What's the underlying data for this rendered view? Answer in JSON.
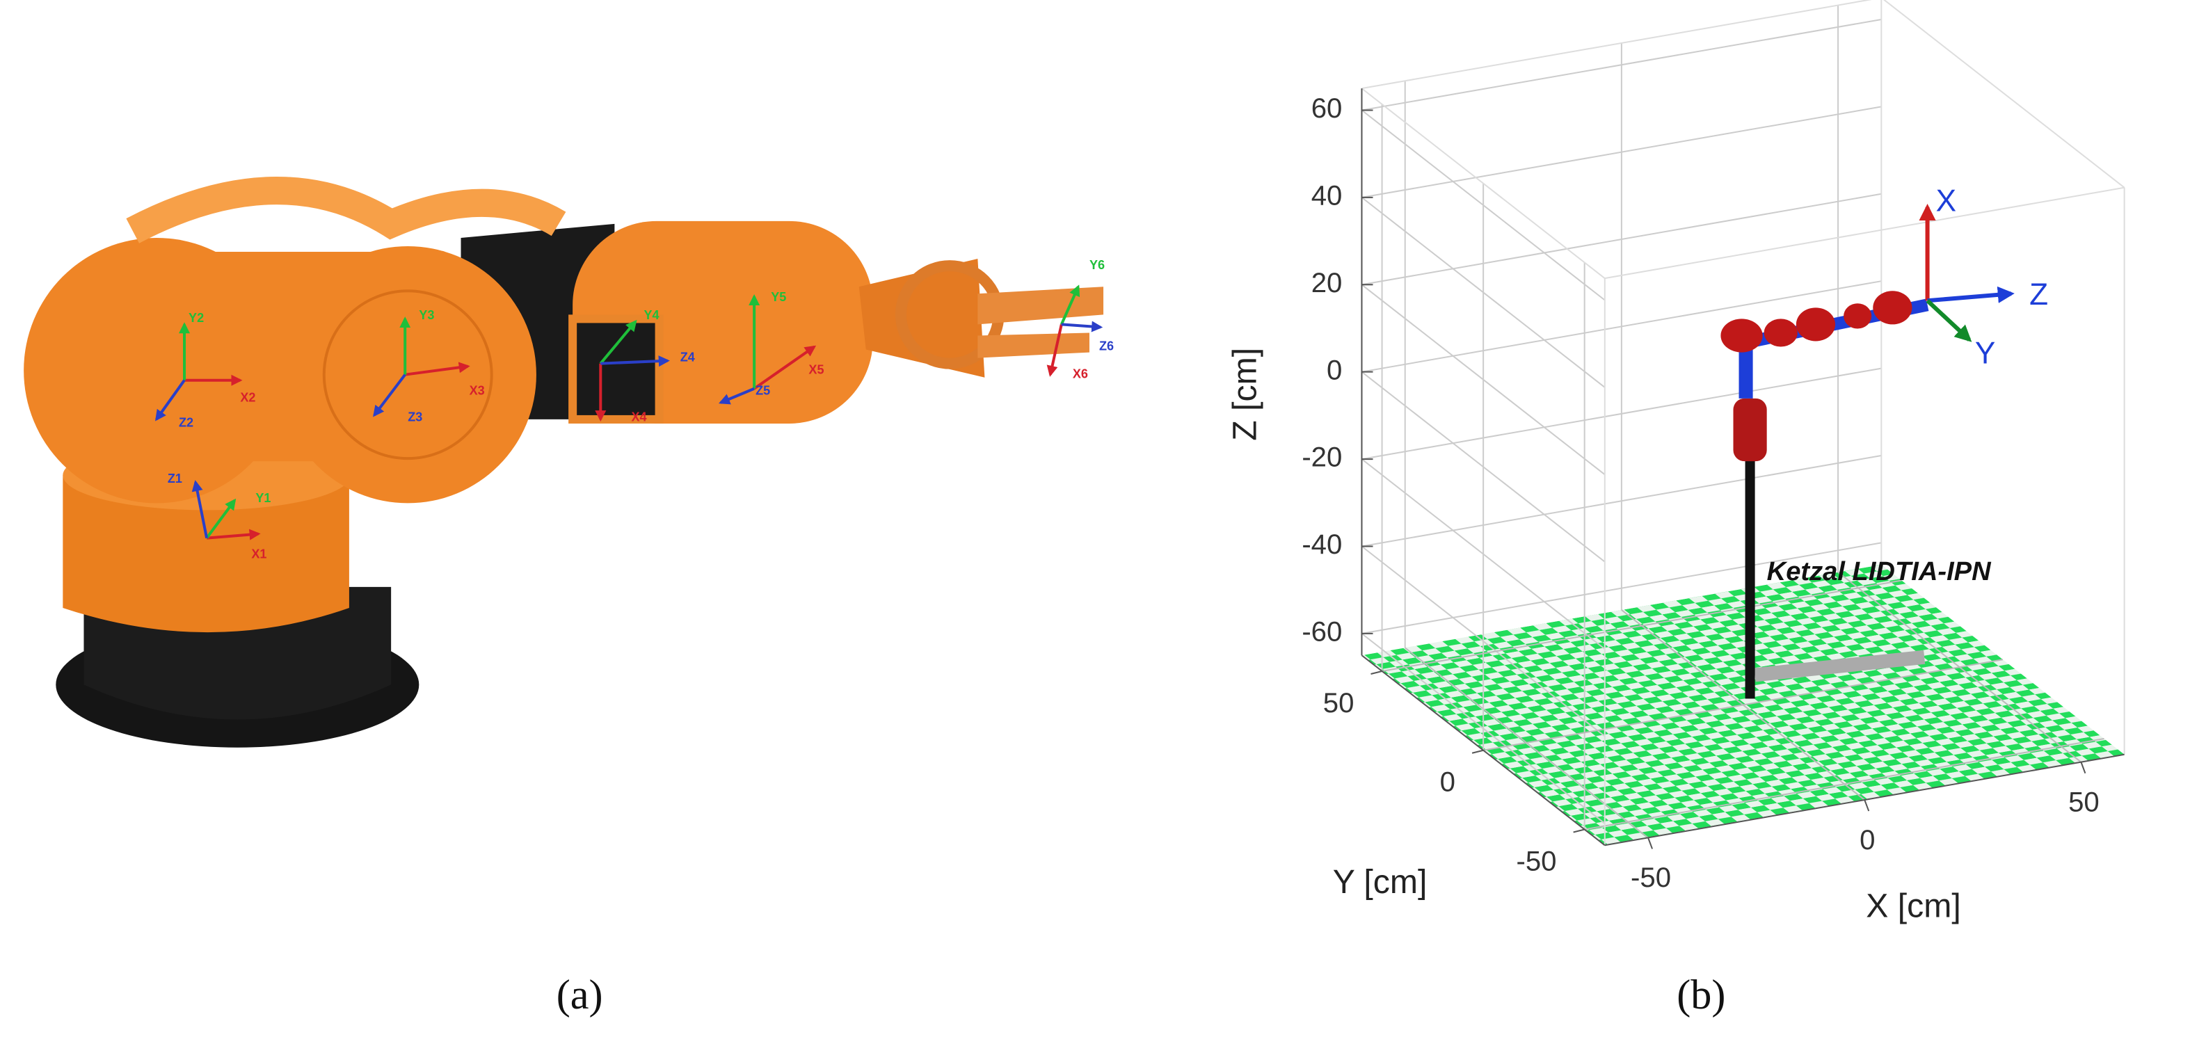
{
  "panel_a": {
    "caption": "(a)",
    "frames": [
      {
        "x": "X1",
        "y": "Y1",
        "z": "Z1"
      },
      {
        "x": "X2",
        "y": "Y2",
        "z": "Z2"
      },
      {
        "x": "X3",
        "y": "Y3",
        "z": "Z3"
      },
      {
        "x": "X4",
        "y": "Y4",
        "z": "Z4"
      },
      {
        "x": "X5",
        "y": "Y5",
        "z": "Z5"
      },
      {
        "x": "X6",
        "y": "Y6",
        "z": "Z6"
      }
    ]
  },
  "panel_b": {
    "caption": "(b)",
    "xlabel": "X [cm]",
    "ylabel": "Y [cm]",
    "zlabel": "Z [cm]",
    "xlim": [
      -60,
      60
    ],
    "ylim": [
      -60,
      60
    ],
    "zlim": [
      -65,
      65
    ],
    "xticks": [
      -50,
      0,
      50
    ],
    "yticks": [
      -50,
      0,
      50
    ],
    "zticks": [
      -60,
      -40,
      -20,
      0,
      20,
      40,
      60
    ],
    "grid": true,
    "annotation": "Ketzal LIDTIA-IPN",
    "frame_labels": {
      "x": "X",
      "y": "Y",
      "z": "Z"
    }
  }
}
